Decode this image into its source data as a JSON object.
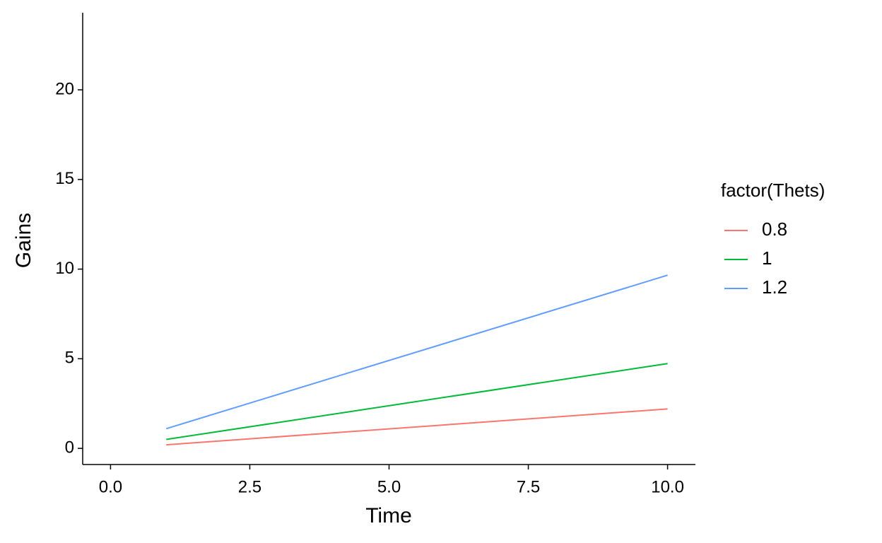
{
  "chart_data": {
    "type": "line",
    "x_label": "Time",
    "y_label": "Gains",
    "legend_title": "factor(Thets)",
    "legend_position": "right",
    "x": [
      1,
      10
    ],
    "series": [
      {
        "name": "0.8",
        "color": "#F8766D",
        "values": [
          0.2,
          2.2
        ]
      },
      {
        "name": "1",
        "color": "#00BA38",
        "values": [
          0.5,
          4.73
        ]
      },
      {
        "name": "1.2",
        "color": "#619CFF",
        "values": [
          1.1,
          9.66
        ]
      }
    ],
    "xlim": [
      -0.5,
      10.5
    ],
    "xticks": [
      {
        "value": 0,
        "label": "0.0"
      },
      2.5,
      {
        "value": 5,
        "label": "5.0"
      },
      7.5,
      {
        "value": 10,
        "label": "10.0"
      }
    ],
    "ylim": [
      -0.9,
      24.3
    ],
    "yticks": [
      0,
      5,
      10,
      15,
      20
    ],
    "grid": false
  }
}
